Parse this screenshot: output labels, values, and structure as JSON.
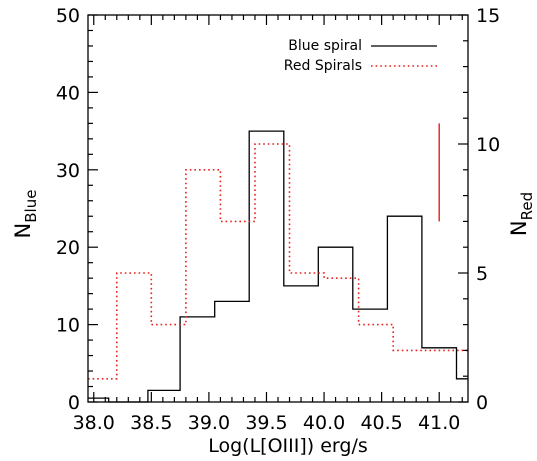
{
  "chart_data": {
    "type": "histogram",
    "xlabel": "Log(L[OIII]) erg/s",
    "ylabel_left": {
      "base": "N",
      "sub": "Blue"
    },
    "ylabel_right": {
      "base": "N",
      "sub": "Red"
    },
    "xlim": [
      37.95,
      41.25
    ],
    "ylim_left": [
      0,
      50
    ],
    "ylim_right": [
      0,
      15
    ],
    "x_ticks": [
      "38.0",
      "38.5",
      "39.0",
      "39.5",
      "40.0",
      "40.5",
      "41.0"
    ],
    "x_tick_values": [
      38.0,
      38.5,
      39.0,
      39.5,
      40.0,
      40.5,
      41.0
    ],
    "y_ticks_left": [
      "0",
      "10",
      "20",
      "30",
      "40",
      "50"
    ],
    "y_tick_values_left": [
      0,
      10,
      20,
      30,
      40,
      50
    ],
    "y_ticks_right": [
      "0",
      "5",
      "10",
      "15"
    ],
    "y_tick_values_right": [
      0,
      5,
      10,
      15
    ],
    "series": [
      {
        "name": "Blue spiral",
        "axis": "left",
        "color": "#000000",
        "style": "solid",
        "bin_edges": [
          37.95,
          38.13,
          38.47,
          38.75,
          39.05,
          39.35,
          39.65,
          39.95,
          40.25,
          40.55,
          40.85,
          41.15,
          41.25
        ],
        "counts": [
          0.5,
          0,
          1.5,
          11,
          13,
          35,
          15,
          20,
          12,
          24,
          7,
          3
        ]
      },
      {
        "name": "Red Spirals",
        "axis": "right",
        "color": "#e8211a",
        "style": "dotted",
        "bin_edges": [
          37.95,
          38.2,
          38.5,
          38.8,
          39.1,
          39.4,
          39.7,
          40.0,
          40.3,
          40.6,
          40.9,
          41.2,
          41.25
        ],
        "counts": [
          0.9,
          5,
          3,
          9,
          7,
          10,
          5,
          4.8,
          3,
          2,
          2,
          2
        ]
      }
    ],
    "error_bar": {
      "x": 41.0,
      "y_low": 7.0,
      "y_high": 10.8,
      "axis": "right",
      "color": "#e8211a"
    },
    "legend_position": "top-right"
  }
}
